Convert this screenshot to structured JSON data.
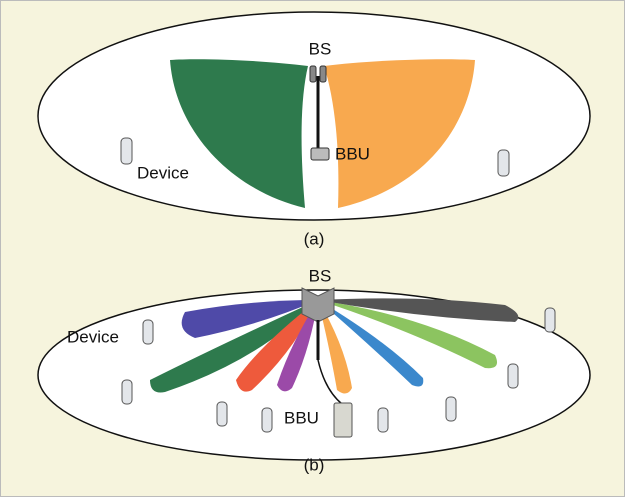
{
  "panel_a": {
    "bs_label": "BS",
    "bbu_label": "BBU",
    "device_label": "Device",
    "caption": "(a)"
  },
  "panel_b": {
    "bs_label": "BS",
    "bbu_label": "BBU",
    "device_label": "Device",
    "caption": "(b)"
  }
}
